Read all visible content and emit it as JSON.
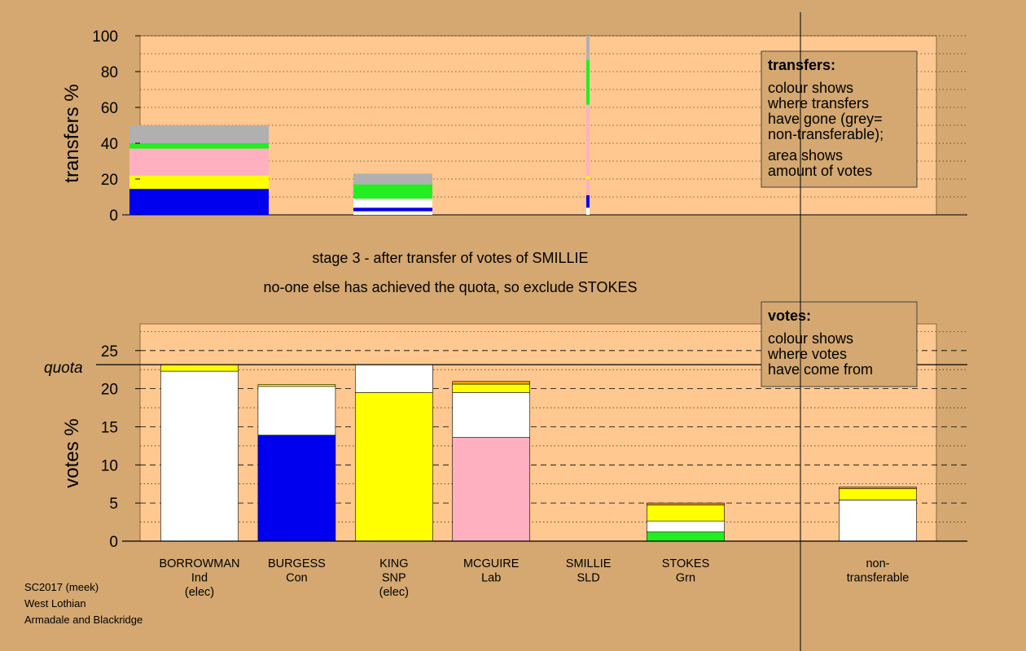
{
  "colors": {
    "background": "#d4a870",
    "plot": "#ffc890",
    "BORROWMAN": "#ffffff",
    "BURGESS": "#0000ee",
    "KING": "#ffff00",
    "MCGUIRE": "#ffb0c0",
    "SMILLIE": "#ffa500",
    "STOKES": "#22ee22",
    "nontransferable": "#b0b0b0"
  },
  "headings": {
    "stage": "stage 3 - after transfer of votes of SMILLIE",
    "result": "no-one else has achieved the quota, so exclude STOKES"
  },
  "footer": [
    "SC2017 (meek)",
    "West Lothian",
    "Armadale and Blackridge"
  ],
  "chart_data": [
    {
      "type": "bar",
      "title": "transfers",
      "ylabel": "transfers %",
      "ylim": [
        0,
        100
      ],
      "yticks": [
        0,
        20,
        40,
        60,
        80,
        100
      ],
      "grid": true,
      "legend_position": "top-right",
      "legend_title": "transfers:",
      "legend_lines": [
        [
          "colour shows",
          "where transfers",
          "have gone (grey=",
          "non-transferable);"
        ],
        [
          "area shows",
          "amount of votes"
        ]
      ],
      "bars": [
        {
          "category_index": 0,
          "width_fraction": 1.0,
          "segments": [
            {
              "who": "BURGESS",
              "value": 14.5
            },
            {
              "who": "KING",
              "value": 7.5
            },
            {
              "who": "MCGUIRE",
              "value": 15
            },
            {
              "who": "STOKES",
              "value": 3
            },
            {
              "who": "nontransferable",
              "value": 10
            }
          ]
        },
        {
          "category_index": 1,
          "width_fraction": 1.0,
          "segments": [
            {
              "who": "BORROWMAN",
              "value": 2
            },
            {
              "who": "BURGESS",
              "value": 2
            },
            {
              "who": "BORROWMAN",
              "value": 5
            },
            {
              "who": "STOKES",
              "value": 8
            },
            {
              "who": "nontransferable",
              "value": 6
            }
          ]
        },
        {
          "category_index": 4,
          "width_fraction": 0.03,
          "segments": [
            {
              "who": "BORROWMAN",
              "value": 4
            },
            {
              "who": "BURGESS",
              "value": 7
            },
            {
              "who": "MCGUIRE",
              "value": 9
            },
            {
              "who": "KING",
              "value": 1.5
            },
            {
              "who": "MCGUIRE",
              "value": 40
            },
            {
              "who": "STOKES",
              "value": 25
            },
            {
              "who": "nontransferable",
              "value": 13.5
            }
          ]
        }
      ]
    },
    {
      "type": "bar",
      "title": "votes",
      "ylabel": "votes %",
      "ylim": [
        0,
        28.5
      ],
      "yticks": [
        0,
        5,
        10,
        15,
        20,
        25
      ],
      "quota": 23.15,
      "quota_label": "quota",
      "grid": true,
      "legend_position": "top-right",
      "legend_title": "votes:",
      "legend_lines": [
        [
          "colour shows",
          "where votes",
          "have come from"
        ]
      ],
      "categories": [
        {
          "name": "BORROWMAN",
          "lines": [
            "BORROWMAN",
            "Ind",
            "(elec)"
          ]
        },
        {
          "name": "BURGESS",
          "lines": [
            "BURGESS",
            "Con"
          ]
        },
        {
          "name": "KING",
          "lines": [
            "KING",
            "SNP",
            "(elec)"
          ]
        },
        {
          "name": "MCGUIRE",
          "lines": [
            "MCGUIRE",
            "Lab"
          ]
        },
        {
          "name": "SMILLIE",
          "lines": [
            "SMILLIE",
            "SLD"
          ]
        },
        {
          "name": "STOKES",
          "lines": [
            "STOKES",
            "Grn"
          ]
        },
        {
          "name": "non-transferable",
          "lines": [
            "non-",
            "transferable"
          ]
        }
      ],
      "bars": [
        {
          "category_index": 0,
          "segments": [
            {
              "who": "BORROWMAN",
              "value": 22.3
            },
            {
              "who": "KING",
              "value": 0.85
            }
          ]
        },
        {
          "category_index": 1,
          "segments": [
            {
              "who": "BURGESS",
              "value": 13.9
            },
            {
              "who": "BORROWMAN",
              "value": 6.4
            },
            {
              "who": "KING",
              "value": 0.25
            }
          ]
        },
        {
          "category_index": 2,
          "segments": [
            {
              "who": "KING",
              "value": 19.5
            },
            {
              "who": "BORROWMAN",
              "value": 3.65
            }
          ]
        },
        {
          "category_index": 3,
          "segments": [
            {
              "who": "MCGUIRE",
              "value": 13.6
            },
            {
              "who": "BORROWMAN",
              "value": 5.9
            },
            {
              "who": "KING",
              "value": 1.1
            },
            {
              "who": "SMILLIE",
              "value": 0.35
            }
          ]
        },
        {
          "category_index": 4,
          "segments": []
        },
        {
          "category_index": 5,
          "segments": [
            {
              "who": "STOKES",
              "value": 1.2
            },
            {
              "who": "BORROWMAN",
              "value": 1.45
            },
            {
              "who": "KING",
              "value": 2.1
            },
            {
              "who": "SMILLIE",
              "value": 0.25
            }
          ]
        },
        {
          "category_index": 6,
          "segments": [
            {
              "who": "BORROWMAN",
              "value": 5.4
            },
            {
              "who": "KING",
              "value": 1.5
            },
            {
              "who": "SMILLIE",
              "value": 0.2
            }
          ]
        }
      ]
    }
  ]
}
